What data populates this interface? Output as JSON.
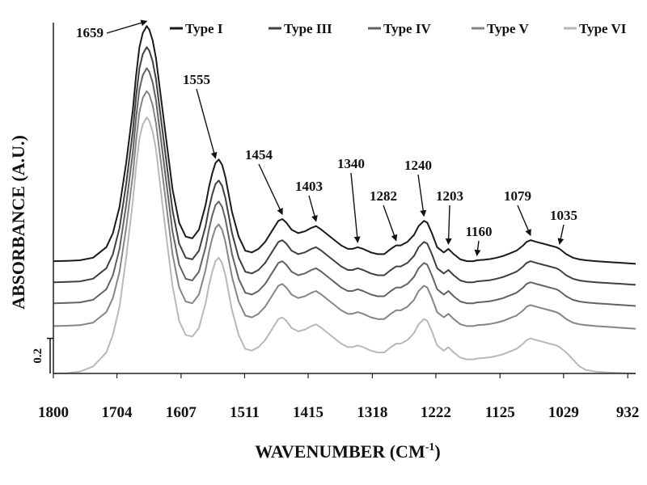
{
  "chart_data": {
    "type": "line",
    "title": "",
    "xlabel": "WAVENUMBER (CM",
    "xlabel_sup": "-1",
    "xlabel_close": ")",
    "ylabel": "ABSORBANCE (A.U.)",
    "x_reversed": true,
    "xlim": [
      1800,
      920
    ],
    "ylim": [
      0,
      2.0
    ],
    "x_ticks": [
      1800,
      1704,
      1607,
      1511,
      1415,
      1318,
      1222,
      1125,
      1029,
      932
    ],
    "scale_bar": {
      "label": "0.2",
      "value": 0.2
    },
    "grid": false,
    "legend_position": "top",
    "x": [
      1800,
      1780,
      1760,
      1740,
      1720,
      1710,
      1700,
      1690,
      1680,
      1675,
      1670,
      1665,
      1659,
      1655,
      1650,
      1645,
      1640,
      1630,
      1620,
      1610,
      1600,
      1590,
      1580,
      1570,
      1565,
      1560,
      1555,
      1550,
      1545,
      1540,
      1535,
      1530,
      1520,
      1510,
      1500,
      1490,
      1480,
      1470,
      1460,
      1454,
      1448,
      1440,
      1430,
      1420,
      1410,
      1403,
      1395,
      1385,
      1375,
      1365,
      1355,
      1348,
      1340,
      1332,
      1320,
      1310,
      1300,
      1290,
      1282,
      1275,
      1265,
      1255,
      1248,
      1240,
      1235,
      1228,
      1220,
      1210,
      1203,
      1195,
      1185,
      1175,
      1165,
      1160,
      1150,
      1140,
      1130,
      1120,
      1110,
      1100,
      1090,
      1085,
      1079,
      1070,
      1060,
      1050,
      1040,
      1035,
      1025,
      1015,
      1005,
      995,
      980,
      960,
      940,
      920
    ],
    "series": [
      {
        "name": "Type I",
        "color": "#1a1a1a",
        "values": [
          0.64,
          0.642,
          0.645,
          0.66,
          0.72,
          0.8,
          0.95,
          1.2,
          1.5,
          1.7,
          1.86,
          1.94,
          1.98,
          1.96,
          1.9,
          1.8,
          1.65,
          1.35,
          1.05,
          0.86,
          0.78,
          0.77,
          0.82,
          0.96,
          1.06,
          1.14,
          1.2,
          1.22,
          1.19,
          1.12,
          1.02,
          0.92,
          0.78,
          0.7,
          0.69,
          0.71,
          0.75,
          0.81,
          0.87,
          0.88,
          0.86,
          0.82,
          0.8,
          0.81,
          0.83,
          0.84,
          0.82,
          0.79,
          0.76,
          0.73,
          0.71,
          0.71,
          0.72,
          0.71,
          0.69,
          0.68,
          0.68,
          0.71,
          0.73,
          0.73,
          0.75,
          0.79,
          0.84,
          0.87,
          0.86,
          0.8,
          0.72,
          0.69,
          0.71,
          0.68,
          0.65,
          0.64,
          0.64,
          0.645,
          0.648,
          0.652,
          0.66,
          0.67,
          0.685,
          0.7,
          0.73,
          0.75,
          0.76,
          0.75,
          0.74,
          0.73,
          0.72,
          0.71,
          0.68,
          0.66,
          0.65,
          0.645,
          0.64,
          0.635,
          0.63,
          0.625
        ]
      },
      {
        "name": "Type III",
        "color": "#404040",
        "values": [
          0.52,
          0.522,
          0.525,
          0.54,
          0.6,
          0.68,
          0.83,
          1.08,
          1.38,
          1.58,
          1.74,
          1.82,
          1.86,
          1.84,
          1.78,
          1.68,
          1.53,
          1.23,
          0.93,
          0.74,
          0.66,
          0.65,
          0.7,
          0.84,
          0.94,
          1.02,
          1.08,
          1.1,
          1.07,
          1.0,
          0.9,
          0.8,
          0.66,
          0.58,
          0.57,
          0.59,
          0.63,
          0.69,
          0.75,
          0.76,
          0.74,
          0.7,
          0.68,
          0.69,
          0.71,
          0.72,
          0.7,
          0.67,
          0.64,
          0.61,
          0.59,
          0.59,
          0.6,
          0.59,
          0.57,
          0.56,
          0.56,
          0.59,
          0.61,
          0.61,
          0.63,
          0.67,
          0.72,
          0.75,
          0.74,
          0.68,
          0.6,
          0.57,
          0.59,
          0.56,
          0.53,
          0.52,
          0.52,
          0.525,
          0.528,
          0.532,
          0.54,
          0.55,
          0.565,
          0.58,
          0.61,
          0.63,
          0.64,
          0.63,
          0.62,
          0.61,
          0.6,
          0.59,
          0.56,
          0.54,
          0.53,
          0.525,
          0.52,
          0.515,
          0.51,
          0.505
        ]
      },
      {
        "name": "Type IV",
        "color": "#626262",
        "values": [
          0.4,
          0.402,
          0.405,
          0.42,
          0.48,
          0.56,
          0.71,
          0.96,
          1.26,
          1.46,
          1.62,
          1.7,
          1.74,
          1.72,
          1.66,
          1.56,
          1.41,
          1.11,
          0.81,
          0.62,
          0.54,
          0.53,
          0.58,
          0.72,
          0.82,
          0.9,
          0.96,
          0.98,
          0.95,
          0.88,
          0.78,
          0.68,
          0.54,
          0.46,
          0.45,
          0.47,
          0.51,
          0.57,
          0.63,
          0.64,
          0.62,
          0.58,
          0.56,
          0.57,
          0.59,
          0.6,
          0.58,
          0.55,
          0.52,
          0.49,
          0.47,
          0.47,
          0.48,
          0.47,
          0.45,
          0.44,
          0.44,
          0.47,
          0.49,
          0.49,
          0.51,
          0.55,
          0.6,
          0.63,
          0.62,
          0.56,
          0.48,
          0.45,
          0.47,
          0.44,
          0.41,
          0.4,
          0.4,
          0.405,
          0.408,
          0.412,
          0.42,
          0.43,
          0.445,
          0.46,
          0.49,
          0.51,
          0.52,
          0.51,
          0.5,
          0.49,
          0.48,
          0.47,
          0.44,
          0.42,
          0.41,
          0.405,
          0.4,
          0.395,
          0.39,
          0.385
        ]
      },
      {
        "name": "Type V",
        "color": "#858585",
        "values": [
          0.27,
          0.272,
          0.275,
          0.29,
          0.35,
          0.43,
          0.58,
          0.83,
          1.13,
          1.33,
          1.49,
          1.57,
          1.61,
          1.59,
          1.53,
          1.43,
          1.28,
          0.98,
          0.68,
          0.49,
          0.41,
          0.4,
          0.45,
          0.59,
          0.69,
          0.77,
          0.83,
          0.85,
          0.82,
          0.75,
          0.65,
          0.55,
          0.41,
          0.33,
          0.32,
          0.34,
          0.38,
          0.44,
          0.5,
          0.51,
          0.49,
          0.45,
          0.43,
          0.44,
          0.46,
          0.47,
          0.45,
          0.42,
          0.39,
          0.36,
          0.34,
          0.34,
          0.35,
          0.34,
          0.32,
          0.31,
          0.31,
          0.34,
          0.36,
          0.36,
          0.38,
          0.42,
          0.47,
          0.5,
          0.49,
          0.43,
          0.35,
          0.32,
          0.34,
          0.31,
          0.28,
          0.27,
          0.27,
          0.275,
          0.278,
          0.282,
          0.29,
          0.3,
          0.315,
          0.33,
          0.36,
          0.38,
          0.39,
          0.38,
          0.37,
          0.36,
          0.35,
          0.34,
          0.31,
          0.29,
          0.28,
          0.275,
          0.27,
          0.265,
          0.26,
          0.255
        ]
      },
      {
        "name": "Type VI",
        "color": "#b8b8b8",
        "values": [
          0.0,
          0.002,
          0.01,
          0.04,
          0.12,
          0.22,
          0.38,
          0.66,
          0.98,
          1.18,
          1.34,
          1.42,
          1.46,
          1.44,
          1.38,
          1.28,
          1.12,
          0.8,
          0.5,
          0.3,
          0.22,
          0.21,
          0.26,
          0.4,
          0.5,
          0.58,
          0.64,
          0.66,
          0.63,
          0.56,
          0.46,
          0.36,
          0.22,
          0.14,
          0.13,
          0.15,
          0.19,
          0.25,
          0.31,
          0.32,
          0.3,
          0.26,
          0.24,
          0.25,
          0.27,
          0.28,
          0.26,
          0.23,
          0.2,
          0.17,
          0.15,
          0.15,
          0.16,
          0.15,
          0.13,
          0.12,
          0.12,
          0.15,
          0.17,
          0.17,
          0.19,
          0.23,
          0.28,
          0.31,
          0.3,
          0.24,
          0.16,
          0.13,
          0.15,
          0.12,
          0.09,
          0.08,
          0.08,
          0.085,
          0.088,
          0.092,
          0.1,
          0.11,
          0.125,
          0.14,
          0.17,
          0.19,
          0.2,
          0.19,
          0.18,
          0.17,
          0.16,
          0.15,
          0.12,
          0.08,
          0.04,
          0.02,
          0.01,
          0.005,
          0.002,
          0.0
        ]
      }
    ],
    "annotations": [
      {
        "label": "1659",
        "x": 1659,
        "y": 1.98
      },
      {
        "label": "1555",
        "x": 1555,
        "y": 1.2
      },
      {
        "label": "1454",
        "x": 1454,
        "y": 0.88
      },
      {
        "label": "1403",
        "x": 1403,
        "y": 0.84
      },
      {
        "label": "1340",
        "x": 1340,
        "y": 0.72
      },
      {
        "label": "1282",
        "x": 1282,
        "y": 0.73
      },
      {
        "label": "1240",
        "x": 1240,
        "y": 0.87
      },
      {
        "label": "1203",
        "x": 1203,
        "y": 0.71
      },
      {
        "label": "1160",
        "x": 1160,
        "y": 0.645
      },
      {
        "label": "1079",
        "x": 1079,
        "y": 0.76
      },
      {
        "label": "1035",
        "x": 1035,
        "y": 0.71
      }
    ]
  }
}
